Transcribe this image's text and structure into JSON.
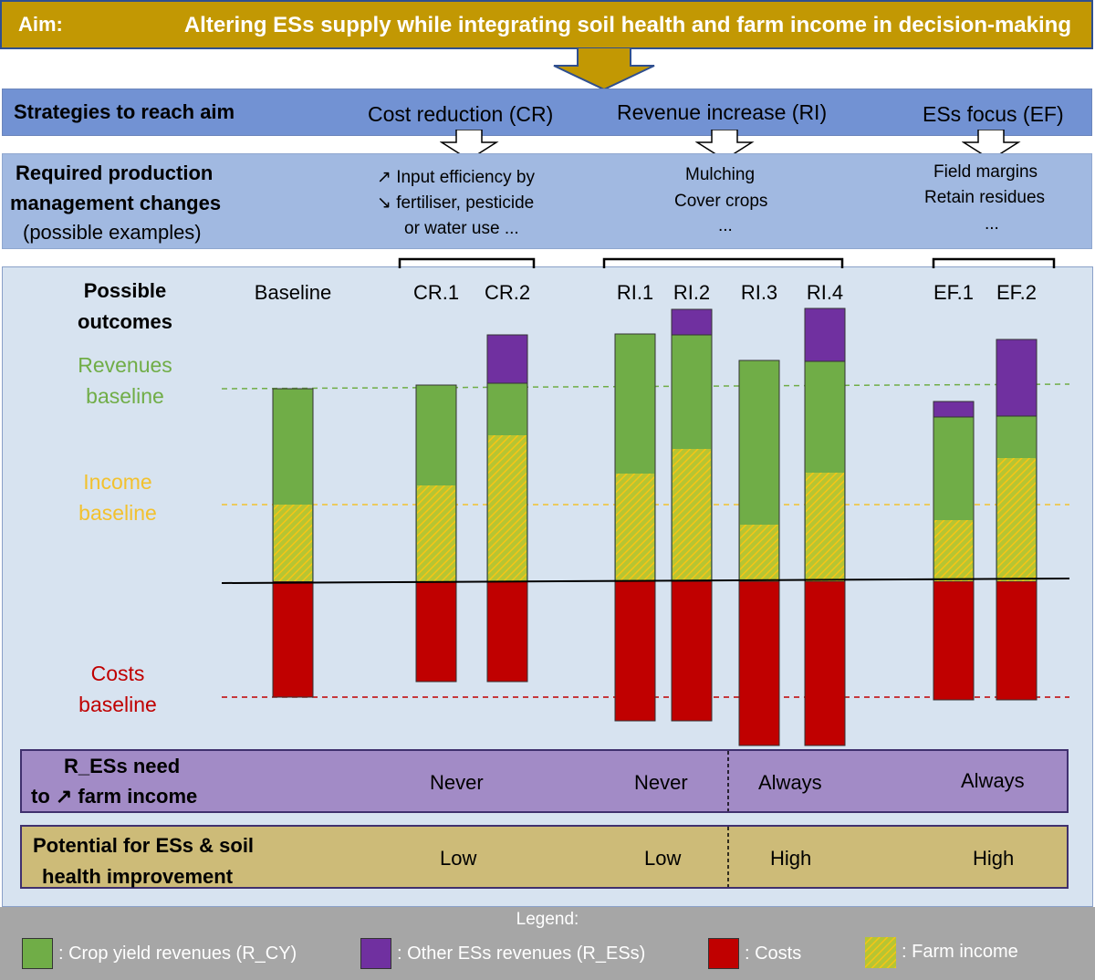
{
  "aim": {
    "label": "Aim:",
    "text": "Altering ESs supply while integrating soil health and farm income in decision-making"
  },
  "strategies": {
    "label": "Strategies to reach aim",
    "items": [
      "Cost reduction (CR)",
      "Revenue increase (RI)",
      "ESs focus (EF)"
    ]
  },
  "required": {
    "label_line1": "Required production",
    "label_line2": "management changes",
    "label_line3": "(possible examples)",
    "cr": [
      "↗ Input efficiency by",
      "↘ fertiliser, pesticide",
      "or water use ..."
    ],
    "ri": [
      "Mulching",
      "Cover crops",
      "..."
    ],
    "ef": [
      "Field margins",
      "Retain residues",
      "..."
    ]
  },
  "outcomes": {
    "title_line1": "Possible",
    "title_line2": "outcomes",
    "revenues_baseline": [
      "Revenues",
      "baseline"
    ],
    "income_baseline": [
      "Income",
      "baseline"
    ],
    "costs_baseline": [
      "Costs",
      "baseline"
    ]
  },
  "chart_data": {
    "type": "bar",
    "title": "Possible outcomes",
    "categories": [
      "Baseline",
      "CR.1",
      "CR.2",
      "RI.1",
      "RI.2",
      "RI.3",
      "RI.4",
      "EF.1",
      "EF.2"
    ],
    "units": "relative (zero line = 0, costs plotted as negative)",
    "series": [
      {
        "name": "Crop yield revenues (R_CY)",
        "values": [
          211,
          215,
          217,
          271,
          270,
          242,
          241,
          180,
          181
        ]
      },
      {
        "name": "Other ESs revenues (R_ESs)",
        "values": [
          0,
          0,
          53,
          0,
          28,
          0,
          58,
          17,
          84
        ]
      },
      {
        "name": "Costs",
        "values": [
          -127,
          -110,
          -110,
          -153,
          -153,
          -180,
          -180,
          -130,
          -130
        ]
      },
      {
        "name": "Farm income",
        "values": [
          84,
          105,
          160,
          118,
          145,
          62,
          119,
          67,
          135
        ]
      }
    ],
    "baselines": {
      "revenues": 211,
      "income": 84,
      "costs": -127
    },
    "ylim": [
      -180,
      300
    ]
  },
  "res_need": {
    "label_line1": "R_ESs need",
    "label_line2": "to ↗ farm income",
    "values": [
      "Never",
      "Never",
      "Always",
      "Always"
    ]
  },
  "potential": {
    "label_line1": "Potential for ESs & soil",
    "label_line2": "health improvement",
    "values": [
      "Low",
      "Low",
      "High",
      "High"
    ]
  },
  "legend": {
    "title": "Legend:",
    "items": [
      ": Crop yield revenues (R_CY)",
      ": Other ESs revenues (R_ESs)",
      ": Costs",
      ": Farm income"
    ]
  },
  "colors": {
    "crop": "#70ad47",
    "other": "#7030a0",
    "costs": "#c00000",
    "income": "#f2c12e",
    "aim": "#c29803"
  }
}
